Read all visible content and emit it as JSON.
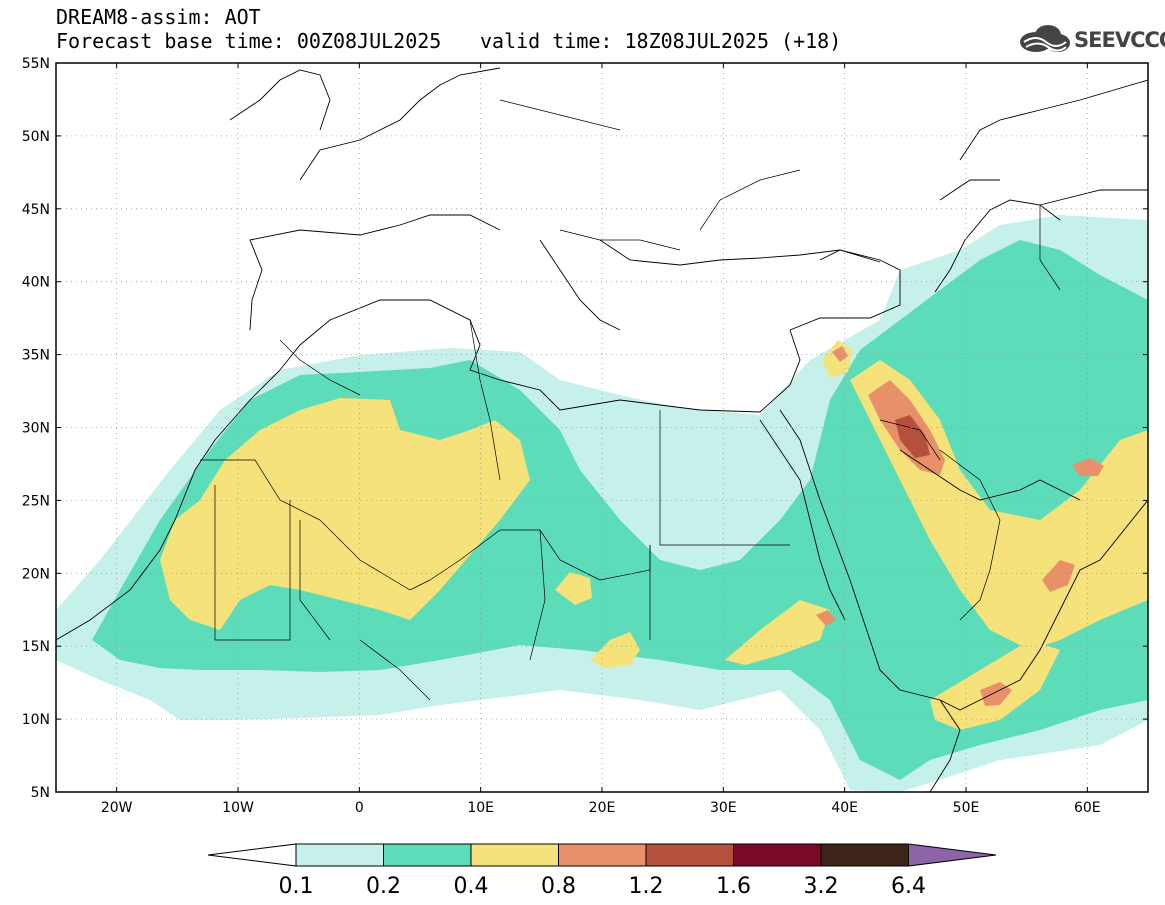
{
  "header": {
    "title": "DREAM8-assim: AOT",
    "base_time": "Forecast base time: 00Z08JUL2025",
    "valid_time": "valid time: 18Z08JUL2025 (+18)",
    "logo_text": "SEEVCCC"
  },
  "map": {
    "lon_range": [
      -25,
      65
    ],
    "lat_range": [
      5,
      55
    ],
    "lat_labels": [
      "55N",
      "50N",
      "45N",
      "40N",
      "35N",
      "30N",
      "25N",
      "20N",
      "15N",
      "10N",
      "5N"
    ],
    "lon_labels": [
      "20W",
      "10W",
      "0",
      "10E",
      "20E",
      "30E",
      "40E",
      "50E",
      "60E"
    ]
  },
  "colorbar": {
    "labels": [
      "0.1",
      "0.2",
      "0.4",
      "0.8",
      "1.2",
      "1.6",
      "3.2",
      "6.4"
    ],
    "colors": [
      "#c6f0ea",
      "#5cdcb8",
      "#f5e27a",
      "#e8906a",
      "#b5503c",
      "#7a0a28",
      "#3c2418",
      "#8c64aa"
    ]
  }
}
